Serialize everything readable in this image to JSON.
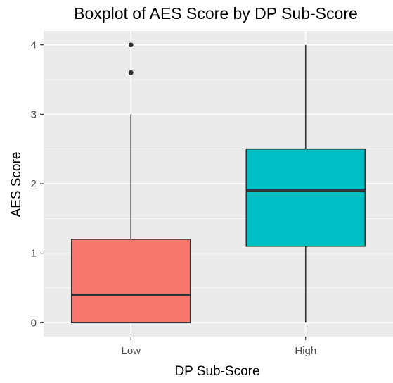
{
  "chart_data": {
    "type": "boxplot",
    "title": "Boxplot of AES Score by DP Sub-Score",
    "xlabel": "DP Sub-Score",
    "ylabel": "AES Score",
    "categories": [
      "Low",
      "High"
    ],
    "ylim": [
      -0.2,
      4.2
    ],
    "yticks": [
      "0",
      "1",
      "2",
      "3",
      "4"
    ],
    "grid": true,
    "legend": "none",
    "boxes": [
      {
        "category": "Low",
        "min": 0,
        "q1": 0,
        "median": 0.4,
        "q3": 1.2,
        "max": 3,
        "outliers": [
          3.6,
          4
        ],
        "color": "#F8766D"
      },
      {
        "category": "High",
        "min": 0,
        "q1": 1.1,
        "median": 1.9,
        "q3": 2.5,
        "max": 4,
        "outliers": [],
        "color": "#00BFC4"
      }
    ]
  }
}
